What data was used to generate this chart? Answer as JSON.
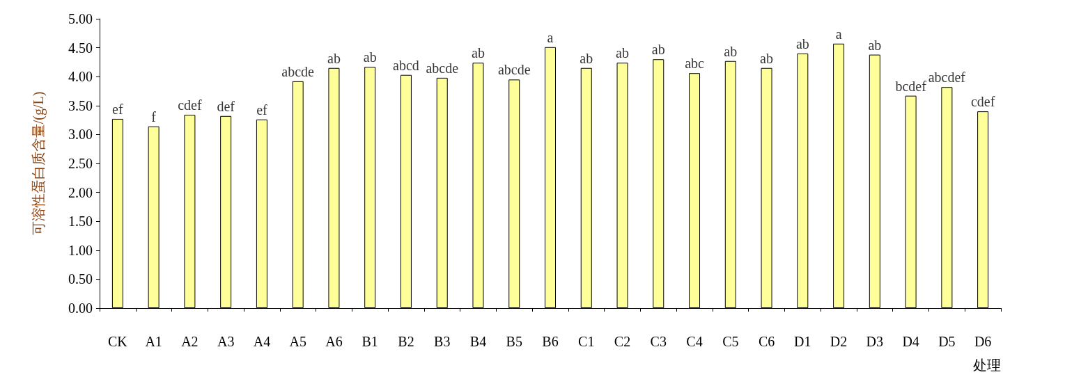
{
  "chart_data": {
    "type": "bar",
    "xlabel": "处理",
    "ylabel": "可溶性蛋白质含量/(g/L)",
    "categories": [
      "CK",
      "A1",
      "A2",
      "A3",
      "A4",
      "A5",
      "A6",
      "B1",
      "B2",
      "B3",
      "B4",
      "B5",
      "B6",
      "C1",
      "C2",
      "C3",
      "C4",
      "C5",
      "C6",
      "D1",
      "D2",
      "D3",
      "D4",
      "D5",
      "D6"
    ],
    "values": [
      3.27,
      3.14,
      3.34,
      3.32,
      3.26,
      3.92,
      4.15,
      4.17,
      4.03,
      3.98,
      4.24,
      3.95,
      4.51,
      4.15,
      4.24,
      4.3,
      4.06,
      4.27,
      4.15,
      4.4,
      4.57,
      4.38,
      3.67,
      3.82,
      3.4
    ],
    "color": "#ffff99",
    "ylim": [
      0,
      5
    ],
    "yticks": [
      {
        "value": 0,
        "label": "0.00"
      },
      {
        "value": 0.5,
        "label": "0.50"
      },
      {
        "value": 1,
        "label": "1.00"
      },
      {
        "value": 1.5,
        "label": "1.50"
      },
      {
        "value": 2,
        "label": "2.00"
      },
      {
        "value": 2.5,
        "label": "2.50"
      },
      {
        "value": 3,
        "label": "3.00"
      },
      {
        "value": 3.5,
        "label": "3.50"
      },
      {
        "value": 4,
        "label": "4.00"
      },
      {
        "value": 4.5,
        "label": "4.50"
      },
      {
        "value": 5,
        "label": "5.00"
      }
    ],
    "grid": false,
    "annotations": [
      {
        "text": "ef",
        "x": "CK",
        "y": 3.27
      },
      {
        "text": "f",
        "x": "A1",
        "y": 3.14
      },
      {
        "text": "cdef",
        "x": "A2",
        "y": 3.34
      },
      {
        "text": "def",
        "x": "A3",
        "y": 3.32
      },
      {
        "text": "ef",
        "x": "A4",
        "y": 3.26
      },
      {
        "text": "abcde",
        "x": "A5",
        "y": 3.92
      },
      {
        "text": "ab",
        "x": "A6",
        "y": 4.15
      },
      {
        "text": "ab",
        "x": "B1",
        "y": 4.17
      },
      {
        "text": "abcd",
        "x": "B2",
        "y": 4.03
      },
      {
        "text": "abcde",
        "x": "B3",
        "y": 3.98
      },
      {
        "text": "ab",
        "x": "B4",
        "y": 4.24
      },
      {
        "text": "abcde",
        "x": "B5",
        "y": 3.95
      },
      {
        "text": "a",
        "x": "B6",
        "y": 4.51
      },
      {
        "text": "ab",
        "x": "C1",
        "y": 4.15
      },
      {
        "text": "ab",
        "x": "C2",
        "y": 4.24
      },
      {
        "text": "ab",
        "x": "C3",
        "y": 4.3
      },
      {
        "text": "abc",
        "x": "C4",
        "y": 4.06
      },
      {
        "text": "ab",
        "x": "C5",
        "y": 4.27
      },
      {
        "text": "ab",
        "x": "C6",
        "y": 4.15
      },
      {
        "text": "ab",
        "x": "D1",
        "y": 4.4
      },
      {
        "text": "a",
        "x": "D2",
        "y": 4.57
      },
      {
        "text": "ab",
        "x": "D3",
        "y": 4.38
      },
      {
        "text": "bcdef",
        "x": "D4",
        "y": 3.67
      },
      {
        "text": "abcdef",
        "x": "D5",
        "y": 3.82
      },
      {
        "text": "cdef",
        "x": "D6",
        "y": 3.4
      }
    ]
  }
}
